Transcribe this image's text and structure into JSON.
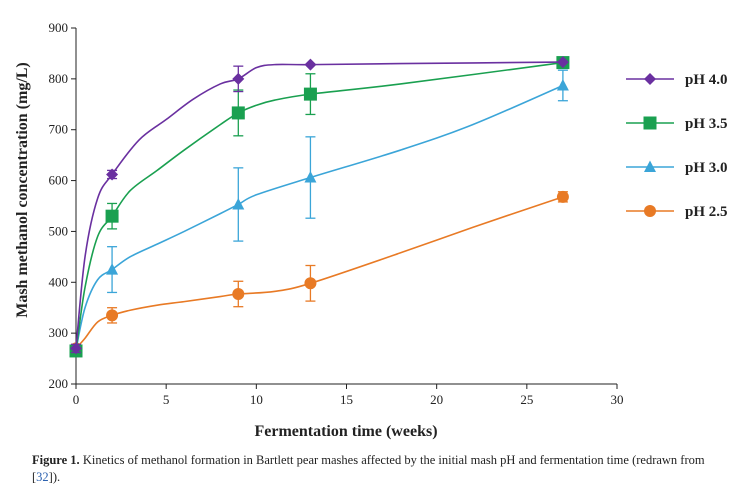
{
  "chart_data": {
    "type": "line",
    "xlabel": "Fermentation time (weeks)",
    "ylabel": "Mash methanol concentration (mg/L)",
    "xlim": [
      0,
      30
    ],
    "ylim": [
      200,
      900
    ],
    "xticks": [
      0,
      5,
      10,
      15,
      20,
      25,
      30
    ],
    "yticks": [
      200,
      300,
      400,
      500,
      600,
      700,
      800,
      900
    ],
    "legend_position": "right",
    "grid": false,
    "series": [
      {
        "name": "pH 4.0",
        "color": "#6a30a0",
        "marker": "diamond",
        "points": [
          {
            "x": 0,
            "y": 270,
            "err": 8
          },
          {
            "x": 2,
            "y": 612,
            "err": 8
          },
          {
            "x": 9,
            "y": 800,
            "err": 25
          },
          {
            "x": 13,
            "y": 828,
            "err": 0
          },
          {
            "x": 27,
            "y": 833,
            "err": 0
          }
        ],
        "curve": [
          [
            0,
            270
          ],
          [
            0.5,
            450
          ],
          [
            1.2,
            565
          ],
          [
            2,
            612
          ],
          [
            3.5,
            680
          ],
          [
            5,
            720
          ],
          [
            6.5,
            760
          ],
          [
            8,
            790
          ],
          [
            9,
            800
          ],
          [
            10,
            822
          ],
          [
            11,
            828
          ],
          [
            13,
            828
          ],
          [
            18,
            830
          ],
          [
            27,
            833
          ]
        ]
      },
      {
        "name": "pH 3.5",
        "color": "#1aa050",
        "marker": "square",
        "points": [
          {
            "x": 0,
            "y": 265,
            "err": 8
          },
          {
            "x": 2,
            "y": 530,
            "err": 25
          },
          {
            "x": 9,
            "y": 733,
            "err": 45
          },
          {
            "x": 13,
            "y": 770,
            "err": 40
          },
          {
            "x": 27,
            "y": 832,
            "err": 0
          }
        ],
        "curve": [
          [
            0,
            265
          ],
          [
            0.5,
            390
          ],
          [
            1.2,
            490
          ],
          [
            2,
            530
          ],
          [
            3,
            580
          ],
          [
            4.5,
            620
          ],
          [
            6,
            660
          ],
          [
            8,
            710
          ],
          [
            9,
            733
          ],
          [
            10,
            748
          ],
          [
            11,
            758
          ],
          [
            13,
            770
          ],
          [
            18,
            790
          ],
          [
            27,
            832
          ]
        ]
      },
      {
        "name": "pH 3.0",
        "color": "#3ba5d8",
        "marker": "triangle",
        "points": [
          {
            "x": 0,
            "y": 268,
            "err": 8
          },
          {
            "x": 2,
            "y": 425,
            "err": 45
          },
          {
            "x": 9,
            "y": 553,
            "err": 72
          },
          {
            "x": 13,
            "y": 606,
            "err": 80
          },
          {
            "x": 27,
            "y": 787,
            "err": 30
          }
        ],
        "curve": [
          [
            0,
            268
          ],
          [
            0.5,
            350
          ],
          [
            1.2,
            405
          ],
          [
            2,
            425
          ],
          [
            3,
            450
          ],
          [
            4.5,
            475
          ],
          [
            6,
            500
          ],
          [
            8,
            535
          ],
          [
            9,
            553
          ],
          [
            10,
            572
          ],
          [
            13,
            606
          ],
          [
            18,
            660
          ],
          [
            22,
            710
          ],
          [
            27,
            787
          ]
        ]
      },
      {
        "name": "pH 2.5",
        "color": "#e87a25",
        "marker": "circle",
        "points": [
          {
            "x": 0,
            "y": 270,
            "err": 8
          },
          {
            "x": 2,
            "y": 335,
            "err": 15
          },
          {
            "x": 9,
            "y": 377,
            "err": 25
          },
          {
            "x": 13,
            "y": 398,
            "err": 35
          },
          {
            "x": 27,
            "y": 568,
            "err": 10
          }
        ],
        "curve": [
          [
            0,
            270
          ],
          [
            0.5,
            290
          ],
          [
            1.2,
            322
          ],
          [
            2,
            335
          ],
          [
            3,
            345
          ],
          [
            4.5,
            355
          ],
          [
            6,
            362
          ],
          [
            8,
            372
          ],
          [
            9,
            377
          ],
          [
            11,
            382
          ],
          [
            13,
            398
          ],
          [
            18,
            458
          ],
          [
            22,
            508
          ],
          [
            27,
            568
          ]
        ]
      }
    ]
  },
  "caption": {
    "label": "Figure 1.",
    "text_before_ref": " Kinetics of methanol formation in Bartlett pear mashes affected by the initial mash pH and fermentation time (redrawn from [",
    "ref": "32",
    "text_after_ref": "])."
  }
}
